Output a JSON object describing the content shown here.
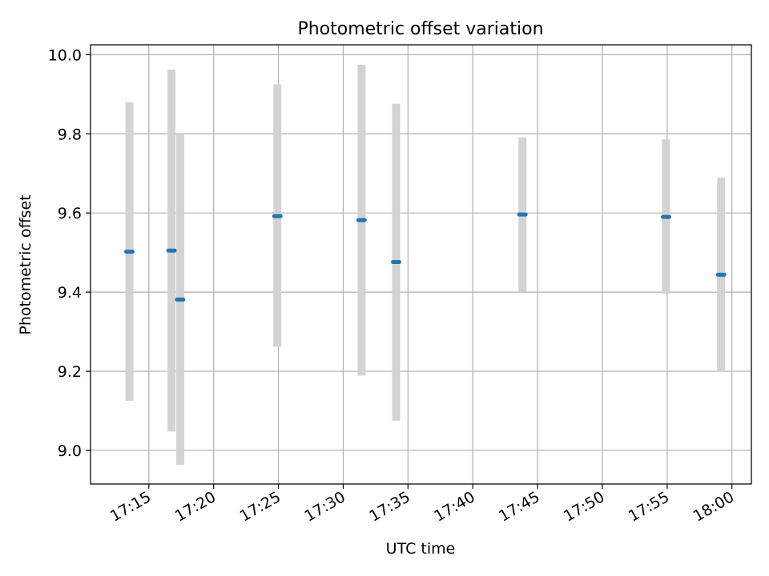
{
  "chart_data": {
    "type": "scatter",
    "title": "Photometric offset variation",
    "xlabel": "UTC time",
    "ylabel": "Photometric offset",
    "x_axis_type": "time",
    "xlim": [
      "17:10:30",
      "18:01:30"
    ],
    "ylim": [
      8.915,
      10.025
    ],
    "grid": true,
    "x_ticks": [
      "17:15",
      "17:20",
      "17:25",
      "17:30",
      "17:35",
      "17:40",
      "17:45",
      "17:50",
      "17:55",
      "18:00"
    ],
    "y_ticks": [
      "9.0",
      "9.2",
      "9.4",
      "9.6",
      "9.8",
      "10.0"
    ],
    "colors": {
      "point": "#1f77b4",
      "errorbar": "#d3d3d3",
      "grid": "#b0b0b0"
    },
    "points": [
      {
        "time": "17:13:30",
        "y": 9.502,
        "ymin": 9.125,
        "ymax": 9.88
      },
      {
        "time": "17:16:45",
        "y": 9.505,
        "ymin": 9.048,
        "ymax": 9.962
      },
      {
        "time": "17:17:25",
        "y": 9.381,
        "ymin": 8.963,
        "ymax": 9.799
      },
      {
        "time": "17:24:55",
        "y": 9.592,
        "ymin": 9.262,
        "ymax": 9.925
      },
      {
        "time": "17:31:25",
        "y": 9.582,
        "ymin": 9.189,
        "ymax": 9.975
      },
      {
        "time": "17:34:05",
        "y": 9.476,
        "ymin": 9.075,
        "ymax": 9.876
      },
      {
        "time": "17:43:50",
        "y": 9.596,
        "ymin": 9.401,
        "ymax": 9.791
      },
      {
        "time": "17:54:55",
        "y": 9.59,
        "ymin": 9.396,
        "ymax": 9.786
      },
      {
        "time": "17:59:10",
        "y": 9.444,
        "ymin": 9.2,
        "ymax": 9.689
      }
    ]
  }
}
